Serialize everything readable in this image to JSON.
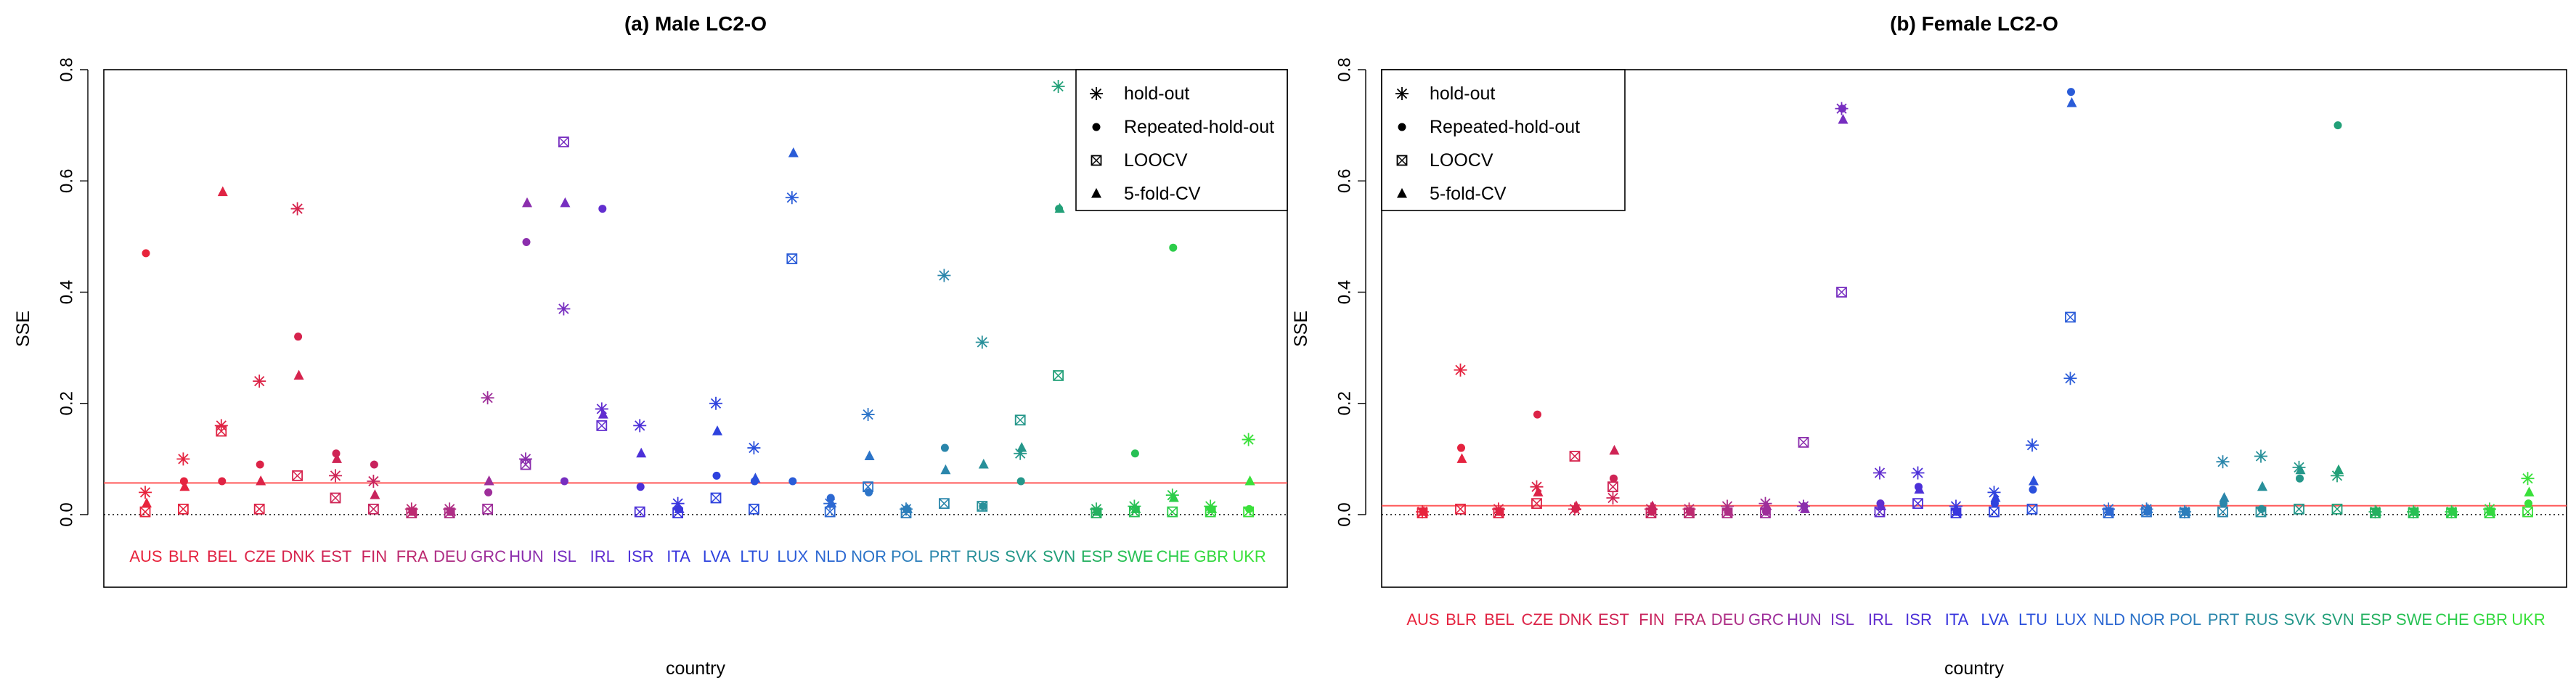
{
  "chart_data": [
    {
      "type": "scatter",
      "title": "(a) Male LC2-O",
      "xlabel": "country",
      "ylabel": "SSE",
      "ylim": [
        -0.13,
        0.81
      ],
      "yticks": [
        0.0,
        0.2,
        0.4,
        0.6,
        0.8
      ],
      "ytick_labels": [
        "0.0",
        "0.2",
        "0.4",
        "0.6",
        "0.8"
      ],
      "reference_line": 0.057,
      "zero_line": 0,
      "legend_position": "top-right",
      "legend": [
        "hold-out",
        "Repeated-hold-out",
        "LOOCV",
        "5-fold-CV"
      ],
      "categories": [
        "AUS",
        "BLR",
        "BEL",
        "CZE",
        "DNK",
        "EST",
        "FIN",
        "FRA",
        "DEU",
        "GRC",
        "HUN",
        "ISL",
        "IRL",
        "ISR",
        "ITA",
        "LVA",
        "LTU",
        "LUX",
        "NLD",
        "NOR",
        "POL",
        "PRT",
        "RUS",
        "SVK",
        "SVN",
        "ESP",
        "SWE",
        "CHE",
        "GBR",
        "UKR"
      ],
      "category_colors": [
        "#e8243c",
        "#e5233f",
        "#e02343",
        "#dc2347",
        "#d6234d",
        "#cf2455",
        "#c8235d",
        "#bc2a70",
        "#ae2e85",
        "#9e2e9a",
        "#8b2ead",
        "#772ec0",
        "#622ecf",
        "#4c30d8",
        "#3a36de",
        "#2e42de",
        "#2a50dc",
        "#2a5cd8",
        "#2c68d2",
        "#2c74c8",
        "#2c7ebb",
        "#2a86ab",
        "#28909a",
        "#25978a",
        "#22a078",
        "#25b060",
        "#27c054",
        "#2ccd4a",
        "#33d840",
        "#3ae03a"
      ],
      "series": [
        {
          "name": "hold-out",
          "marker": "asterisk",
          "values": [
            0.04,
            0.1,
            0.16,
            0.24,
            0.55,
            0.07,
            0.06,
            0.01,
            0.01,
            0.21,
            0.1,
            0.37,
            0.19,
            0.16,
            0.02,
            0.2,
            0.12,
            0.57,
            0.02,
            0.18,
            0.01,
            0.43,
            0.31,
            0.11,
            0.77,
            0.01,
            0.015,
            0.035,
            0.015,
            0.135
          ]
        },
        {
          "name": "Repeated-hold-out",
          "marker": "diamond",
          "values": [
            0.47,
            0.06,
            0.06,
            0.09,
            0.32,
            0.11,
            0.09,
            0.005,
            0.005,
            0.04,
            0.49,
            0.06,
            0.55,
            0.05,
            0.01,
            0.07,
            0.06,
            0.06,
            0.03,
            0.04,
            0.01,
            0.12,
            0.015,
            0.06,
            0.55,
            0.005,
            0.11,
            0.48,
            0.01,
            0.01
          ]
        },
        {
          "name": "LOOCV",
          "marker": "boxed-x",
          "values": [
            0.005,
            0.01,
            0.15,
            0.01,
            0.07,
            0.03,
            0.01,
            0.003,
            0.003,
            0.01,
            0.09,
            0.67,
            0.16,
            0.005,
            0.003,
            0.03,
            0.01,
            0.46,
            0.005,
            0.05,
            0.003,
            0.02,
            0.015,
            0.17,
            0.25,
            0.003,
            0.005,
            0.005,
            0.005,
            0.005
          ]
        },
        {
          "name": "5-fold-CV",
          "marker": "triangle",
          "values": [
            0.02,
            0.05,
            0.58,
            0.06,
            0.25,
            0.1,
            0.035,
            0.005,
            0.005,
            0.06,
            0.56,
            0.56,
            0.18,
            0.11,
            0.01,
            0.15,
            0.065,
            0.65,
            0.02,
            0.105,
            0.01,
            0.08,
            0.09,
            0.12,
            0.55,
            0.005,
            0.01,
            0.03,
            0.01,
            0.06
          ]
        }
      ]
    },
    {
      "type": "scatter",
      "title": "(b) Female LC2-O",
      "xlabel": "country",
      "ylabel": "SSE",
      "ylim": [
        -0.13,
        0.81
      ],
      "yticks": [
        0.0,
        0.2,
        0.4,
        0.6,
        0.8
      ],
      "ytick_labels": [
        "0.0",
        "0.2",
        "0.4",
        "0.6",
        "0.8"
      ],
      "reference_line": 0.016,
      "zero_line": 0,
      "legend_position": "top-left",
      "legend": [
        "hold-out",
        "Repeated-hold-out",
        "LOOCV",
        "5-fold-CV"
      ],
      "categories": [
        "AUS",
        "BLR",
        "BEL",
        "CZE",
        "DNK",
        "EST",
        "FIN",
        "FRA",
        "DEU",
        "GRC",
        "HUN",
        "ISL",
        "IRL",
        "ISR",
        "ITA",
        "LVA",
        "LTU",
        "LUX",
        "NLD",
        "NOR",
        "POL",
        "PRT",
        "RUS",
        "SVK",
        "SVN",
        "ESP",
        "SWE",
        "CHE",
        "GBR",
        "UKR"
      ],
      "category_colors": [
        "#e8243c",
        "#e5233f",
        "#e02343",
        "#dc2347",
        "#d6234d",
        "#cf2455",
        "#c8235d",
        "#bc2a70",
        "#ae2e85",
        "#9e2e9a",
        "#8b2ead",
        "#772ec0",
        "#622ecf",
        "#4c30d8",
        "#3a36de",
        "#2e42de",
        "#2a50dc",
        "#2a5cd8",
        "#2c68d2",
        "#2c74c8",
        "#2c7ebb",
        "#2a86ab",
        "#28909a",
        "#25978a",
        "#22a078",
        "#25b060",
        "#27c054",
        "#2ccd4a",
        "#33d840",
        "#3ae03a"
      ],
      "series": [
        {
          "name": "hold-out",
          "marker": "asterisk",
          "values": [
            0.005,
            0.26,
            0.01,
            0.05,
            0.01,
            0.03,
            0.01,
            0.01,
            0.015,
            0.02,
            0.015,
            0.73,
            0.075,
            0.075,
            0.015,
            0.04,
            0.125,
            0.245,
            0.01,
            0.01,
            0.005,
            0.095,
            0.105,
            0.085,
            0.07,
            0.005,
            0.005,
            0.005,
            0.01,
            0.065
          ]
        },
        {
          "name": "Repeated-hold-out",
          "marker": "diamond",
          "values": [
            0.005,
            0.12,
            0.005,
            0.18,
            0.01,
            0.065,
            0.005,
            0.005,
            0.005,
            0.005,
            0.015,
            0.73,
            0.02,
            0.05,
            0.005,
            0.02,
            0.045,
            0.76,
            0.005,
            0.005,
            0.005,
            0.02,
            0.01,
            0.065,
            0.7,
            0.005,
            0.005,
            0.005,
            0.005,
            0.02
          ]
        },
        {
          "name": "LOOCV",
          "marker": "boxed-x",
          "values": [
            0.003,
            0.01,
            0.003,
            0.02,
            0.105,
            0.05,
            0.003,
            0.003,
            0.003,
            0.003,
            0.13,
            0.4,
            0.005,
            0.02,
            0.003,
            0.005,
            0.01,
            0.355,
            0.003,
            0.005,
            0.003,
            0.005,
            0.005,
            0.01,
            0.01,
            0.003,
            0.003,
            0.003,
            0.003,
            0.005
          ]
        },
        {
          "name": "5-fold-CV",
          "marker": "triangle",
          "values": [
            0.005,
            0.1,
            0.005,
            0.04,
            0.015,
            0.115,
            0.015,
            0.005,
            0.005,
            0.015,
            0.01,
            0.71,
            0.015,
            0.045,
            0.005,
            0.03,
            0.06,
            0.74,
            0.005,
            0.01,
            0.005,
            0.03,
            0.05,
            0.08,
            0.08,
            0.005,
            0.005,
            0.005,
            0.005,
            0.04
          ]
        }
      ]
    }
  ]
}
